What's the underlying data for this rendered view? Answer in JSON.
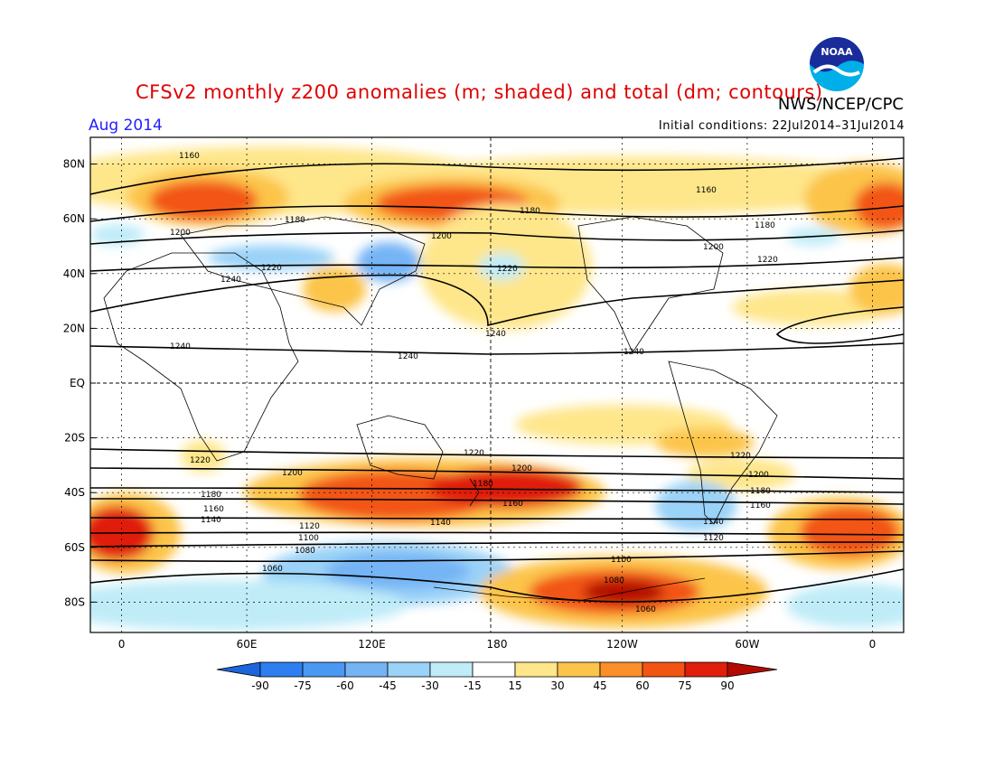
{
  "header": {
    "title": "CFSv2 monthly z200 anomalies (m; shaded) and total (dm; contours)",
    "credit": "NWS/NCEP/CPC",
    "period": "Aug 2014",
    "initial_conditions": "Initial conditions: 22Jul2014–31Jul2014",
    "logo_text": "NOAA"
  },
  "map": {
    "lat_labels": [
      "80N",
      "60N",
      "40N",
      "20N",
      "EQ",
      "20S",
      "40S",
      "60S",
      "80S"
    ],
    "lon_labels": [
      "0",
      "60E",
      "120E",
      "180",
      "120W",
      "60W",
      "0"
    ],
    "contour_labels": [
      "1060",
      "1080",
      "1100",
      "1120",
      "1140",
      "1160",
      "1180",
      "1200",
      "1220",
      "1240"
    ],
    "colors": {
      "frame": "#000000",
      "coast": "#000000"
    }
  },
  "colorbar": {
    "ticks": [
      "-90",
      "-75",
      "-60",
      "-45",
      "-30",
      "-15",
      "15",
      "30",
      "45",
      "60",
      "75",
      "90"
    ],
    "colors": [
      "#1e64dc",
      "#2d7ef0",
      "#4a98f2",
      "#74b4f5",
      "#9ad2f8",
      "#c0ecf8",
      "#ffffff",
      "#fee68a",
      "#fcc44a",
      "#fb8f2a",
      "#f25414",
      "#e01e0a",
      "#b40a00"
    ]
  }
}
